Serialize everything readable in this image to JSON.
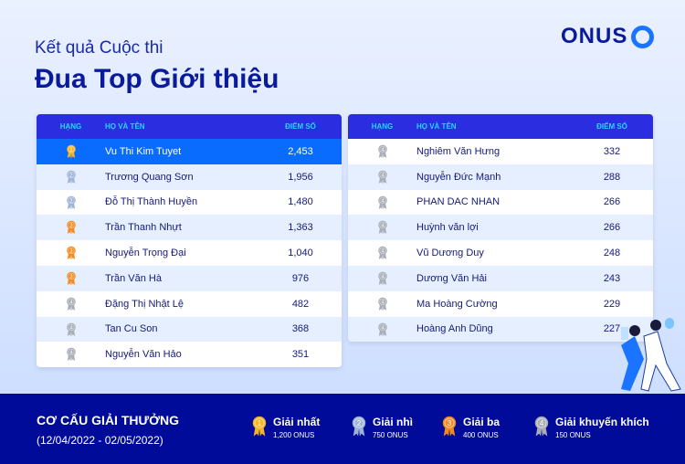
{
  "header": {
    "subtitle": "Kết quả Cuộc thi",
    "title": "Đua Top Giới thiệu",
    "logo": "ONUS"
  },
  "columns": {
    "rank": "HẠNG",
    "name": "HỌ VÀ TÊN",
    "score": "ĐIỂM SỐ"
  },
  "left_table": [
    {
      "rank": 1,
      "name": "Vu Thi Kim Tuyet",
      "score": "2,453"
    },
    {
      "rank": 2,
      "name": "Trương Quang Sơn",
      "score": "1,956"
    },
    {
      "rank": 2,
      "name": "Đỗ Thị Thành Huyền",
      "score": "1,480"
    },
    {
      "rank": 3,
      "name": "Trần Thanh Nhựt",
      "score": "1,363"
    },
    {
      "rank": 3,
      "name": "Nguyễn Trọng Đại",
      "score": "1,040"
    },
    {
      "rank": 3,
      "name": "Trần Văn Hà",
      "score": "976"
    },
    {
      "rank": 4,
      "name": "Đặng Thị Nhật Lệ",
      "score": "482"
    },
    {
      "rank": 4,
      "name": "Tan Cu Son",
      "score": "368"
    },
    {
      "rank": 4,
      "name": "Nguyễn Văn Hảo",
      "score": "351"
    }
  ],
  "right_table": [
    {
      "rank": 4,
      "name": "Nghiêm Văn Hưng",
      "score": "332"
    },
    {
      "rank": 4,
      "name": "Nguyễn Đức Mạnh",
      "score": "288"
    },
    {
      "rank": 4,
      "name": "PHAN DAC NHAN",
      "score": "266"
    },
    {
      "rank": 4,
      "name": "Huỳnh văn lợi",
      "score": "266"
    },
    {
      "rank": 4,
      "name": "Vũ Dương Duy",
      "score": "248"
    },
    {
      "rank": 4,
      "name": "Dương Văn Hải",
      "score": "243"
    },
    {
      "rank": 4,
      "name": "Ma Hoàng Cường",
      "score": "229"
    },
    {
      "rank": 4,
      "name": "Hoàng Anh Dũng",
      "score": "227"
    }
  ],
  "footer": {
    "title": "CƠ CẤU GIẢI THƯỞNG",
    "dates": "(12/04/2022 - 02/05/2022)",
    "prizes": [
      {
        "rank": 1,
        "name": "Giải nhất",
        "amount": "1,200 ONUS"
      },
      {
        "rank": 2,
        "name": "Giải nhì",
        "amount": "750 ONUS"
      },
      {
        "rank": 3,
        "name": "Giải ba",
        "amount": "400 ONUS"
      },
      {
        "rank": 4,
        "name": "Giải khuyến khích",
        "amount": "150 ONUS"
      }
    ]
  },
  "medal_colors": {
    "1": "#f7b526",
    "2": "#9fb3d6",
    "3": "#f28a1e",
    "4": "#a9adb5"
  }
}
